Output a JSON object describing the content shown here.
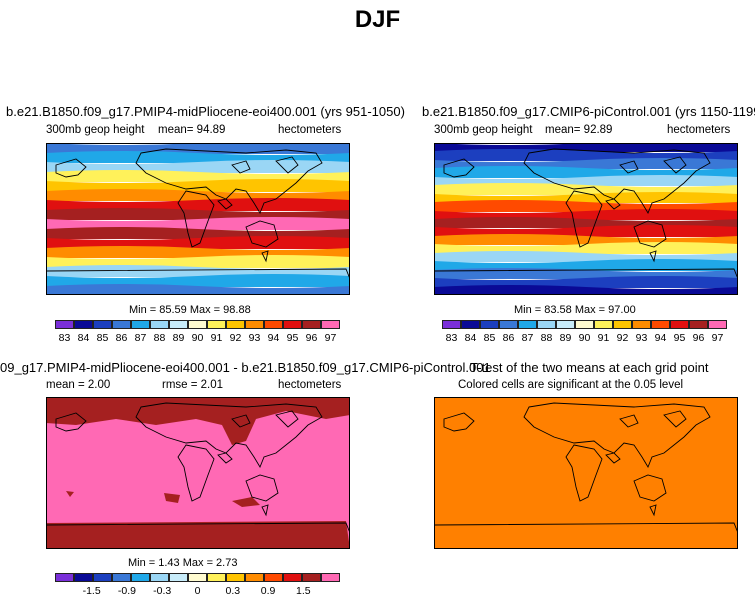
{
  "page": {
    "title": "DJF"
  },
  "panels": {
    "p1": {
      "title": "b.e21.B1850.f09_g17.PMIP4-midPliocene-eoi400.001 (yrs 951-1050)",
      "left_label": "300mb geop height",
      "mean_label": "mean=   94.89",
      "units": "hectometers",
      "minmax": "Min =  85.59 Max =  98.88"
    },
    "p2": {
      "title": "b.e21.B1850.f09_g17.CMIP6-piControl.001 (yrs 1150-1199)",
      "left_label": "300mb geop height",
      "mean_label": "mean=   92.89",
      "units": "hectometers",
      "minmax": "Min =  83.58 Max =  97.00"
    },
    "p3": {
      "title": "09_g17.PMIP4-midPliocene-eoi400.001 - b.e21.B1850.f09_g17.CMIP6-piControl.001",
      "mean_label": "mean =    2.00",
      "rmse_label": "rmse =    2.01",
      "units": "hectometers",
      "minmax": "Min =   1.43 Max =    2.73"
    },
    "p4": {
      "title": "T-test of the two means at each grid point",
      "subtitle": "Colored cells are significant at the 0.05 level"
    }
  },
  "colorbars": {
    "abs": {
      "colors": [
        "#7a2fd9",
        "#0a0a96",
        "#1c3fbf",
        "#3a78d6",
        "#20a8e8",
        "#9ad6f5",
        "#c8ecfa",
        "#fffbd0",
        "#fff15a",
        "#ffc400",
        "#ff8c00",
        "#ff4a00",
        "#e01010",
        "#a52020",
        "#ff69b4"
      ],
      "labels": [
        "83",
        "84",
        "85",
        "86",
        "87",
        "88",
        "89",
        "90",
        "91",
        "92",
        "93",
        "94",
        "95",
        "96",
        "97"
      ]
    },
    "diff": {
      "colors": [
        "#7a2fd9",
        "#0a0a96",
        "#1c3fbf",
        "#3a78d6",
        "#20a8e8",
        "#9ad6f5",
        "#c8ecfa",
        "#fffbd0",
        "#fff15a",
        "#ffc400",
        "#ff8c00",
        "#ff4a00",
        "#e01010",
        "#a52020",
        "#ff69b4"
      ],
      "labels": [
        "-1.5",
        "-0.9",
        "-0.3",
        "0",
        "0.3",
        "0.9",
        "1.5"
      ]
    }
  },
  "map_colors": {
    "p1_bands": [
      "#3a78d6",
      "#20a8e8",
      "#9ad6f5",
      "#fff15a",
      "#ffc400",
      "#ff8c00",
      "#e01010",
      "#a52020",
      "#ff69b4",
      "#a52020",
      "#e01010",
      "#ff8c00",
      "#fff15a",
      "#9ad6f5",
      "#20a8e8",
      "#3a78d6"
    ],
    "p2_bands": [
      "#0a0a96",
      "#1c3fbf",
      "#3a78d6",
      "#20a8e8",
      "#9ad6f5",
      "#fff15a",
      "#ffc400",
      "#ff4a00",
      "#e01010",
      "#a52020",
      "#e01010",
      "#ff8c00",
      "#fff15a",
      "#9ad6f5",
      "#20a8e8",
      "#3a78d6",
      "#1c3fbf",
      "#0a0a96"
    ],
    "p3_fill": "#ff69b4",
    "p3_patch": "#a52020",
    "p4_fill": "#ff8000"
  }
}
